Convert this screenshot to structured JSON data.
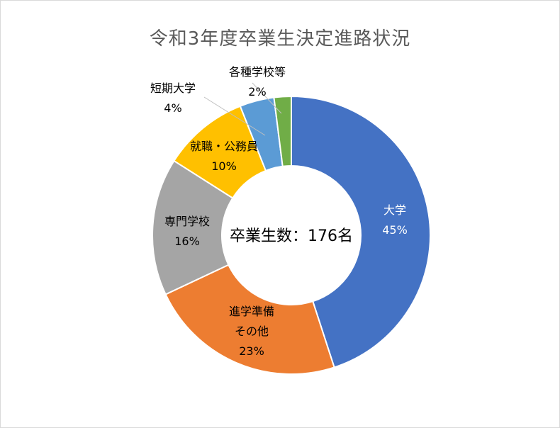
{
  "chart_data": {
    "type": "pie",
    "donut": true,
    "title": "令和3年度卒業生決定進路状況",
    "center_label": "卒業生数：176名",
    "slices": [
      {
        "name": "大学",
        "value": 45,
        "label_lines": [
          "大学",
          "45%"
        ],
        "color": "#4472C4",
        "label_color": "#ffffff"
      },
      {
        "name": "進学準備その他",
        "value": 23,
        "label_lines": [
          "進学準備",
          "その他",
          "23%"
        ],
        "color": "#ED7D31",
        "label_color": "#000000"
      },
      {
        "name": "専門学校",
        "value": 16,
        "label_lines": [
          "専門学校",
          "16%"
        ],
        "color": "#A5A5A5",
        "label_color": "#000000"
      },
      {
        "name": "就職・公務員",
        "value": 10,
        "label_lines": [
          "就職・公務員",
          "10%"
        ],
        "color": "#FFC000",
        "label_color": "#000000"
      },
      {
        "name": "短期大学",
        "value": 4,
        "label_lines": [
          "短期大学",
          "4%"
        ],
        "color": "#5B9BD5",
        "label_color": "#000000"
      },
      {
        "name": "各種学校等",
        "value": 2,
        "label_lines": [
          "各種学校等",
          "2%"
        ],
        "color": "#70AD47",
        "label_color": "#000000"
      }
    ],
    "legend": "none"
  }
}
